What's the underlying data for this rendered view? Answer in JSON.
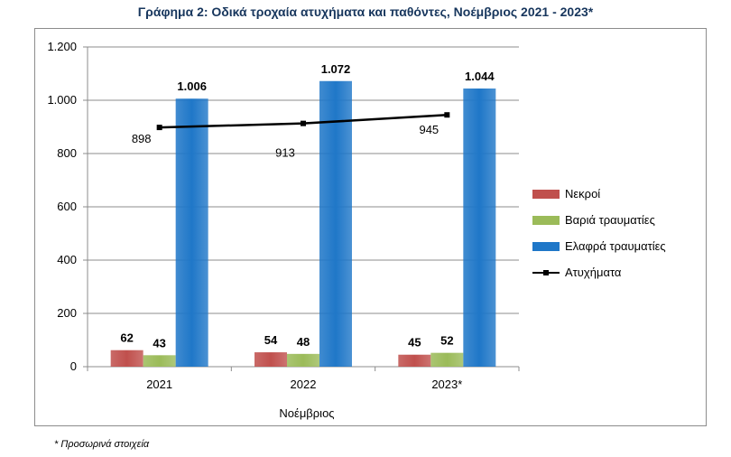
{
  "chart_data": {
    "type": "bar",
    "title": "Γράφημα 2: Οδικά τροχαία ατυχήματα και παθόντες, Νοέμβριος 2021 - 2023*",
    "xlabel": "Νοέμβριος",
    "ylabel": "",
    "categories": [
      "2021",
      "2022",
      "2023*"
    ],
    "ylim": [
      0,
      1200
    ],
    "yticks": [
      0,
      200,
      400,
      600,
      800,
      1000,
      1200
    ],
    "ytick_labels": [
      "0",
      "200",
      "400",
      "600",
      "800",
      "1.000",
      "1.200"
    ],
    "grid": true,
    "legend_position": "right",
    "series": [
      {
        "name": "Νεκροί",
        "type": "bar",
        "color": "#c0504d",
        "values": [
          62,
          54,
          45
        ],
        "labels": [
          "62",
          "54",
          "45"
        ]
      },
      {
        "name": "Βαριά τραυματίες",
        "type": "bar",
        "color": "#9bbb59",
        "values": [
          43,
          48,
          52
        ],
        "labels": [
          "43",
          "48",
          "52"
        ]
      },
      {
        "name": "Ελαφρά τραυματίες",
        "type": "bar",
        "color": "#1f77c8",
        "values": [
          1006,
          1072,
          1044
        ],
        "labels": [
          "1.006",
          "1.072",
          "1.044"
        ]
      },
      {
        "name": "Ατυχήματα",
        "type": "line",
        "color": "#000000",
        "values": [
          898,
          913,
          945
        ],
        "labels": [
          "898",
          "913",
          "945"
        ]
      }
    ]
  },
  "footnote": "* Προσωρινά στοιχεία"
}
